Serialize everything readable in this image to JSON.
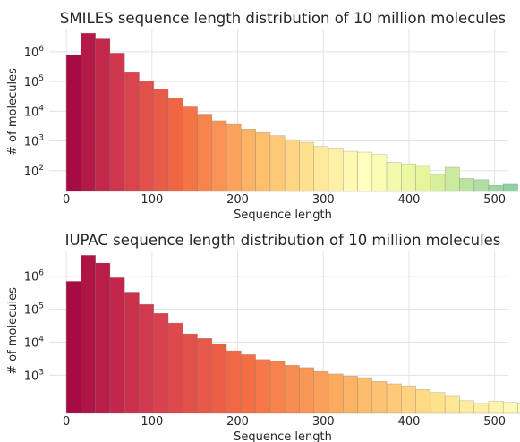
{
  "chart_data": [
    {
      "type": "bar",
      "title": "SMILES sequence length distribution of 10 million molecules",
      "xlabel": "Sequence length",
      "ylabel": "# of molecules",
      "yscale": "log",
      "xlim": [
        -20,
        516
      ],
      "ylim": [
        20,
        6000000
      ],
      "xticks": [
        0,
        100,
        200,
        300,
        400,
        500
      ],
      "yticks": [
        {
          "value": 100,
          "base": "10",
          "exp": "2"
        },
        {
          "value": 1000,
          "base": "10",
          "exp": "3"
        },
        {
          "value": 10000,
          "base": "10",
          "exp": "4"
        },
        {
          "value": 100000,
          "base": "10",
          "exp": "5"
        },
        {
          "value": 1000000,
          "base": "10",
          "exp": "6"
        }
      ],
      "grid": true,
      "bin_start": 0,
      "bin_width": 17,
      "values": [
        800000,
        4200000,
        2700000,
        900000,
        200000,
        100000,
        55000,
        28000,
        14000,
        8000,
        4800,
        3600,
        2500,
        1900,
        1500,
        1100,
        900,
        650,
        580,
        450,
        420,
        350,
        190,
        170,
        150,
        75,
        130,
        55,
        50,
        32,
        35
      ]
    },
    {
      "type": "bar",
      "title": "IUPAC sequence length distribution of 10 million molecules",
      "xlabel": "Sequence length",
      "ylabel": "# of molecules",
      "yscale": "log",
      "xlim": [
        -20,
        516
      ],
      "ylim": [
        70,
        6000000
      ],
      "xticks": [
        0,
        100,
        200,
        300,
        400,
        500
      ],
      "yticks": [
        {
          "value": 1000,
          "base": "10",
          "exp": "3"
        },
        {
          "value": 10000,
          "base": "10",
          "exp": "4"
        },
        {
          "value": 100000,
          "base": "10",
          "exp": "5"
        },
        {
          "value": 1000000,
          "base": "10",
          "exp": "6"
        }
      ],
      "grid": true,
      "bin_start": 0,
      "bin_width": 17,
      "values": [
        700000,
        4300000,
        2500000,
        900000,
        330000,
        140000,
        75000,
        38000,
        18000,
        13000,
        9000,
        5500,
        4200,
        3000,
        2600,
        2000,
        1700,
        1300,
        1100,
        950,
        850,
        650,
        550,
        480,
        370,
        300,
        230,
        170,
        140,
        165,
        150,
        145
      ]
    }
  ]
}
